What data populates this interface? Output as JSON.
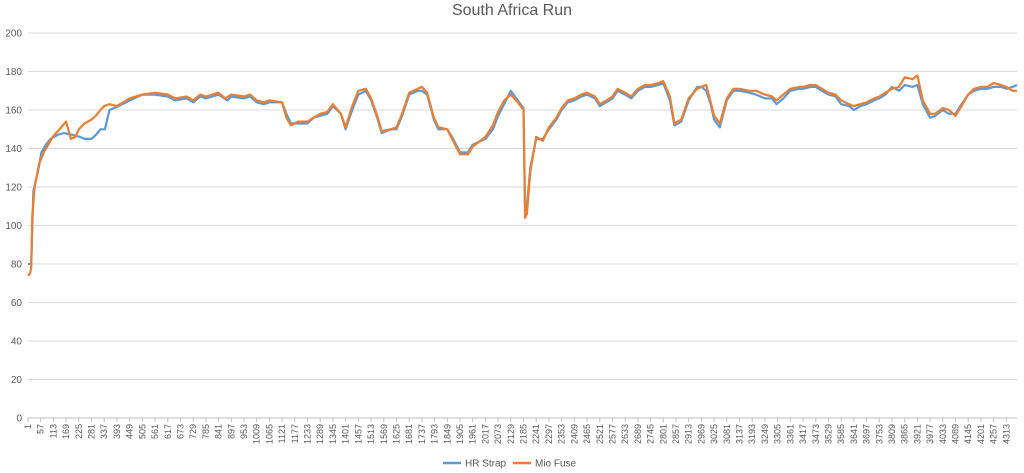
{
  "chart_data": {
    "type": "line",
    "title": "South Africa Run",
    "xlabel": "",
    "ylabel": "",
    "ylim": [
      0,
      200
    ],
    "y_ticks": [
      0,
      20,
      40,
      60,
      80,
      100,
      120,
      140,
      160,
      180,
      200
    ],
    "x_range": [
      1,
      4360
    ],
    "x_ticks": [
      1,
      57,
      113,
      169,
      225,
      281,
      337,
      393,
      449,
      505,
      561,
      617,
      673,
      729,
      785,
      841,
      897,
      953,
      1009,
      1065,
      1121,
      1177,
      1233,
      1289,
      1345,
      1401,
      1457,
      1513,
      1569,
      1625,
      1681,
      1737,
      1793,
      1849,
      1905,
      1961,
      2017,
      2073,
      2129,
      2185,
      2241,
      2297,
      2353,
      2409,
      2465,
      2521,
      2577,
      2633,
      2689,
      2745,
      2801,
      2857,
      2913,
      2969,
      3025,
      3081,
      3137,
      3193,
      3249,
      3305,
      3361,
      3417,
      3473,
      3529,
      3585,
      3641,
      3697,
      3753,
      3809,
      3865,
      3921,
      3977,
      4033,
      4089,
      4145,
      4201,
      4257,
      4313
    ],
    "grid": "horizontal",
    "legend_position": "bottom",
    "series": [
      {
        "name": "HR Strap",
        "color": "#5B9BD5",
        "points": [
          [
            1,
            80
          ],
          [
            15,
            80
          ],
          [
            25,
            118
          ],
          [
            45,
            128
          ],
          [
            60,
            138
          ],
          [
            80,
            142
          ],
          [
            100,
            145
          ],
          [
            130,
            147
          ],
          [
            160,
            148
          ],
          [
            200,
            147
          ],
          [
            230,
            146
          ],
          [
            250,
            145
          ],
          [
            280,
            145
          ],
          [
            300,
            147
          ],
          [
            320,
            150
          ],
          [
            340,
            150
          ],
          [
            350,
            155
          ],
          [
            360,
            160
          ],
          [
            400,
            162
          ],
          [
            450,
            165
          ],
          [
            505,
            168
          ],
          [
            560,
            168
          ],
          [
            617,
            167
          ],
          [
            650,
            165
          ],
          [
            700,
            166
          ],
          [
            730,
            164
          ],
          [
            760,
            167
          ],
          [
            785,
            166
          ],
          [
            841,
            168
          ],
          [
            880,
            165
          ],
          [
            897,
            167
          ],
          [
            953,
            166
          ],
          [
            980,
            167
          ],
          [
            1009,
            164
          ],
          [
            1040,
            163
          ],
          [
            1065,
            164
          ],
          [
            1121,
            164
          ],
          [
            1140,
            158
          ],
          [
            1160,
            153
          ],
          [
            1190,
            153
          ],
          [
            1233,
            153
          ],
          [
            1260,
            156
          ],
          [
            1289,
            157
          ],
          [
            1320,
            158
          ],
          [
            1345,
            162
          ],
          [
            1380,
            158
          ],
          [
            1401,
            150
          ],
          [
            1430,
            160
          ],
          [
            1457,
            168
          ],
          [
            1490,
            170
          ],
          [
            1513,
            165
          ],
          [
            1540,
            156
          ],
          [
            1560,
            148
          ],
          [
            1600,
            150
          ],
          [
            1625,
            150
          ],
          [
            1650,
            157
          ],
          [
            1681,
            168
          ],
          [
            1720,
            170
          ],
          [
            1737,
            170
          ],
          [
            1760,
            168
          ],
          [
            1790,
            155
          ],
          [
            1810,
            150
          ],
          [
            1849,
            150
          ],
          [
            1870,
            146
          ],
          [
            1905,
            138
          ],
          [
            1940,
            138
          ],
          [
            1961,
            142
          ],
          [
            2017,
            145
          ],
          [
            2050,
            150
          ],
          [
            2073,
            157
          ],
          [
            2100,
            163
          ],
          [
            2129,
            170
          ],
          [
            2160,
            165
          ],
          [
            2185,
            161
          ],
          [
            2192,
            108
          ],
          [
            2200,
            110
          ],
          [
            2215,
            130
          ],
          [
            2241,
            145
          ],
          [
            2270,
            145
          ],
          [
            2297,
            150
          ],
          [
            2330,
            155
          ],
          [
            2353,
            160
          ],
          [
            2380,
            164
          ],
          [
            2409,
            165
          ],
          [
            2440,
            167
          ],
          [
            2465,
            168
          ],
          [
            2500,
            166
          ],
          [
            2521,
            162
          ],
          [
            2550,
            164
          ],
          [
            2577,
            166
          ],
          [
            2600,
            170
          ],
          [
            2633,
            168
          ],
          [
            2660,
            166
          ],
          [
            2689,
            170
          ],
          [
            2720,
            172
          ],
          [
            2745,
            172
          ],
          [
            2780,
            173
          ],
          [
            2801,
            174
          ],
          [
            2830,
            165
          ],
          [
            2850,
            152
          ],
          [
            2880,
            154
          ],
          [
            2913,
            165
          ],
          [
            2950,
            172
          ],
          [
            2969,
            172
          ],
          [
            2990,
            170
          ],
          [
            3010,
            163
          ],
          [
            3025,
            155
          ],
          [
            3050,
            151
          ],
          [
            3081,
            165
          ],
          [
            3110,
            170
          ],
          [
            3137,
            170
          ],
          [
            3180,
            169
          ],
          [
            3210,
            168
          ],
          [
            3249,
            166
          ],
          [
            3280,
            166
          ],
          [
            3300,
            163
          ],
          [
            3330,
            166
          ],
          [
            3361,
            170
          ],
          [
            3400,
            171
          ],
          [
            3417,
            171
          ],
          [
            3450,
            172
          ],
          [
            3473,
            172
          ],
          [
            3500,
            170
          ],
          [
            3529,
            168
          ],
          [
            3560,
            167
          ],
          [
            3585,
            163
          ],
          [
            3620,
            162
          ],
          [
            3641,
            160
          ],
          [
            3670,
            162
          ],
          [
            3697,
            163
          ],
          [
            3730,
            165
          ],
          [
            3753,
            166
          ],
          [
            3780,
            168
          ],
          [
            3809,
            172
          ],
          [
            3840,
            170
          ],
          [
            3865,
            173
          ],
          [
            3900,
            172
          ],
          [
            3921,
            173
          ],
          [
            3945,
            163
          ],
          [
            3977,
            156
          ],
          [
            4000,
            157
          ],
          [
            4033,
            160
          ],
          [
            4060,
            158
          ],
          [
            4089,
            158
          ],
          [
            4110,
            162
          ],
          [
            4145,
            168
          ],
          [
            4170,
            170
          ],
          [
            4201,
            171
          ],
          [
            4230,
            171
          ],
          [
            4257,
            172
          ],
          [
            4290,
            172
          ],
          [
            4313,
            171
          ],
          [
            4340,
            172
          ],
          [
            4360,
            173
          ]
        ]
      },
      {
        "name": "Mio Fuse",
        "color": "#ED7D31",
        "points": [
          [
            1,
            74
          ],
          [
            10,
            75
          ],
          [
            15,
            78
          ],
          [
            20,
            105
          ],
          [
            30,
            120
          ],
          [
            50,
            132
          ],
          [
            70,
            138
          ],
          [
            90,
            142
          ],
          [
            110,
            146
          ],
          [
            140,
            150
          ],
          [
            169,
            154
          ],
          [
            190,
            145
          ],
          [
            210,
            146
          ],
          [
            225,
            150
          ],
          [
            250,
            153
          ],
          [
            281,
            155
          ],
          [
            300,
            157
          ],
          [
            320,
            160
          ],
          [
            337,
            162
          ],
          [
            360,
            163
          ],
          [
            393,
            162
          ],
          [
            449,
            166
          ],
          [
            505,
            168
          ],
          [
            561,
            169
          ],
          [
            617,
            168
          ],
          [
            650,
            166
          ],
          [
            700,
            167
          ],
          [
            729,
            165
          ],
          [
            760,
            168
          ],
          [
            785,
            167
          ],
          [
            841,
            169
          ],
          [
            870,
            166
          ],
          [
            897,
            168
          ],
          [
            953,
            167
          ],
          [
            980,
            168
          ],
          [
            1009,
            165
          ],
          [
            1040,
            164
          ],
          [
            1065,
            165
          ],
          [
            1121,
            164
          ],
          [
            1140,
            156
          ],
          [
            1160,
            152
          ],
          [
            1190,
            154
          ],
          [
            1233,
            154
          ],
          [
            1260,
            156
          ],
          [
            1289,
            158
          ],
          [
            1320,
            159
          ],
          [
            1345,
            163
          ],
          [
            1380,
            158
          ],
          [
            1401,
            151
          ],
          [
            1430,
            162
          ],
          [
            1457,
            170
          ],
          [
            1490,
            171
          ],
          [
            1513,
            166
          ],
          [
            1540,
            157
          ],
          [
            1560,
            149
          ],
          [
            1600,
            150
          ],
          [
            1625,
            151
          ],
          [
            1650,
            158
          ],
          [
            1681,
            169
          ],
          [
            1720,
            171
          ],
          [
            1737,
            172
          ],
          [
            1760,
            169
          ],
          [
            1790,
            156
          ],
          [
            1810,
            151
          ],
          [
            1849,
            150
          ],
          [
            1870,
            145
          ],
          [
            1905,
            137
          ],
          [
            1940,
            137
          ],
          [
            1961,
            141
          ],
          [
            2017,
            146
          ],
          [
            2050,
            152
          ],
          [
            2073,
            159
          ],
          [
            2100,
            165
          ],
          [
            2129,
            168
          ],
          [
            2160,
            164
          ],
          [
            2185,
            160
          ],
          [
            2192,
            104
          ],
          [
            2200,
            106
          ],
          [
            2215,
            128
          ],
          [
            2241,
            146
          ],
          [
            2270,
            144
          ],
          [
            2297,
            151
          ],
          [
            2330,
            156
          ],
          [
            2353,
            161
          ],
          [
            2380,
            165
          ],
          [
            2409,
            166
          ],
          [
            2440,
            168
          ],
          [
            2465,
            169
          ],
          [
            2500,
            167
          ],
          [
            2521,
            163
          ],
          [
            2550,
            165
          ],
          [
            2577,
            167
          ],
          [
            2600,
            171
          ],
          [
            2633,
            169
          ],
          [
            2660,
            167
          ],
          [
            2689,
            171
          ],
          [
            2720,
            173
          ],
          [
            2745,
            173
          ],
          [
            2780,
            174
          ],
          [
            2801,
            175
          ],
          [
            2830,
            167
          ],
          [
            2850,
            153
          ],
          [
            2880,
            155
          ],
          [
            2913,
            166
          ],
          [
            2950,
            171
          ],
          [
            2969,
            172
          ],
          [
            2990,
            173
          ],
          [
            3010,
            164
          ],
          [
            3025,
            157
          ],
          [
            3050,
            153
          ],
          [
            3081,
            166
          ],
          [
            3110,
            171
          ],
          [
            3137,
            171
          ],
          [
            3180,
            170
          ],
          [
            3210,
            170
          ],
          [
            3249,
            168
          ],
          [
            3280,
            167
          ],
          [
            3300,
            165
          ],
          [
            3330,
            168
          ],
          [
            3361,
            171
          ],
          [
            3400,
            172
          ],
          [
            3417,
            172
          ],
          [
            3450,
            173
          ],
          [
            3473,
            173
          ],
          [
            3500,
            171
          ],
          [
            3529,
            169
          ],
          [
            3560,
            168
          ],
          [
            3585,
            165
          ],
          [
            3620,
            163
          ],
          [
            3641,
            162
          ],
          [
            3670,
            163
          ],
          [
            3697,
            164
          ],
          [
            3730,
            166
          ],
          [
            3753,
            167
          ],
          [
            3780,
            169
          ],
          [
            3809,
            171
          ],
          [
            3840,
            172
          ],
          [
            3865,
            177
          ],
          [
            3900,
            176
          ],
          [
            3921,
            178
          ],
          [
            3945,
            165
          ],
          [
            3977,
            158
          ],
          [
            4000,
            158
          ],
          [
            4033,
            161
          ],
          [
            4060,
            160
          ],
          [
            4089,
            157
          ],
          [
            4110,
            161
          ],
          [
            4145,
            168
          ],
          [
            4170,
            171
          ],
          [
            4201,
            172
          ],
          [
            4230,
            172
          ],
          [
            4257,
            174
          ],
          [
            4290,
            173
          ],
          [
            4313,
            172
          ],
          [
            4340,
            170
          ],
          [
            4360,
            170
          ]
        ]
      }
    ]
  }
}
